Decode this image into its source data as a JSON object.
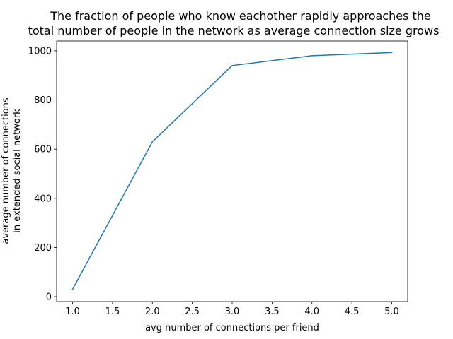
{
  "chart_data": {
    "type": "line",
    "title_line1": "The fraction of people who know eachother rapidly approaches the",
    "title_line2": "total number of people in the network as average connection size grows",
    "xlabel": "avg number of connections per friend",
    "ylabel_line1": "average number of connections",
    "ylabel_line2": "in extended social network",
    "x": [
      1.0,
      2.0,
      3.0,
      4.0,
      5.0
    ],
    "series": [
      {
        "values": [
          30,
          630,
          940,
          980,
          993
        ],
        "color": "#1f77b4"
      }
    ],
    "xlim": [
      0.8,
      5.2
    ],
    "ylim": [
      -20,
      1040
    ],
    "xticks": [
      1.0,
      1.5,
      2.0,
      2.5,
      3.0,
      3.5,
      4.0,
      4.5,
      5.0
    ],
    "xtick_labels": [
      "1.0",
      "1.5",
      "2.0",
      "2.5",
      "3.0",
      "3.5",
      "4.0",
      "4.5",
      "5.0"
    ],
    "yticks": [
      0,
      200,
      400,
      600,
      800,
      1000
    ],
    "ytick_labels": [
      "0",
      "200",
      "400",
      "600",
      "800",
      "1000"
    ],
    "grid": false,
    "legend": "none"
  }
}
